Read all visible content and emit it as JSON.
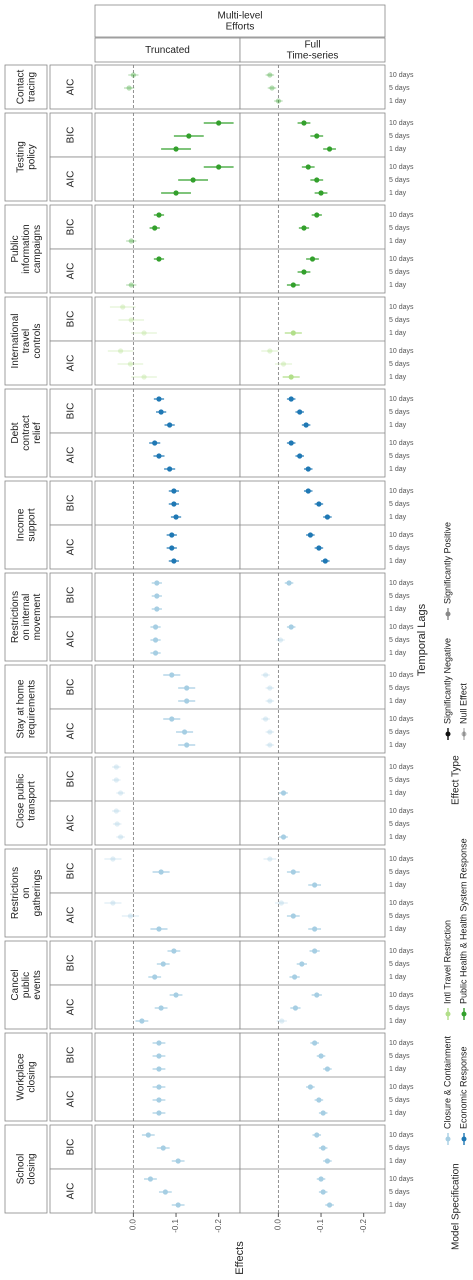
{
  "chart_data": {
    "type": "forest",
    "header": "Multi-level Efforts",
    "columns": [
      "Truncated",
      "Full Time-series"
    ],
    "xlabel": "Effects",
    "lag_label": "Temporal Lags",
    "lags": [
      "1 day",
      "5 days",
      "10 days"
    ],
    "xlim": [
      0.09,
      -0.25
    ],
    "xticks": [
      {
        "value": 0,
        "label": "0.0"
      },
      -0.1,
      -0.2
    ],
    "legend_title": "Model Specification",
    "effect_title": "Effect Type",
    "effect_types": [
      "Significantly Negative",
      "Null Effect",
      "Significantly Positive"
    ],
    "series": [
      {
        "name": "Closure & Containment",
        "color": "#a6cee3",
        "policies": [
          {
            "name": "Restrictions on internal movement",
            "models": [
              {
                "spec": "BIC",
                "values": [
                  [
                    -0.055,
                    -0.055,
                    -0.055
                  ],
                  [
                    null,
                    null,
                    -0.025
                  ]
                ],
                "errors": [
                  0.012,
                  0.01
                ]
              },
              {
                "spec": "AIC",
                "values": [
                  [
                    -0.052,
                    -0.052,
                    -0.052
                  ],
                  [
                    null,
                    -0.005,
                    -0.03
                  ]
                ],
                "errors": [
                  0.012,
                  0.01
                ]
              }
            ]
          },
          {
            "name": "Stay at home requirements",
            "models": [
              {
                "spec": "BIC",
                "values": [
                  [
                    -0.125,
                    -0.125,
                    -0.09
                  ],
                  [
                    0.02,
                    0.02,
                    0.03
                  ]
                ],
                "errors": [
                  0.02,
                  0.01
                ]
              },
              {
                "spec": "AIC",
                "values": [
                  [
                    -0.125,
                    -0.12,
                    -0.09
                  ],
                  [
                    0.02,
                    0.02,
                    0.03
                  ]
                ],
                "errors": [
                  0.02,
                  0.01
                ]
              }
            ]
          },
          {
            "name": "Close public transport",
            "models": [
              {
                "spec": "BIC",
                "values": [
                  [
                    0.03,
                    0.04,
                    0.04
                  ],
                  [
                    -0.012,
                    null,
                    null
                  ]
                ],
                "errors": [
                  0.01,
                  0.01
                ]
              },
              {
                "spec": "AIC",
                "values": [
                  [
                    0.03,
                    0.038,
                    0.04
                  ],
                  [
                    -0.012,
                    null,
                    null
                  ]
                ],
                "errors": [
                  0.01,
                  0.01
                ]
              }
            ]
          },
          {
            "name": "Restrictions on gatherings",
            "models": [
              {
                "spec": "BIC",
                "values": [
                  [
                    null,
                    -0.065,
                    0.048
                  ],
                  [
                    -0.085,
                    -0.035,
                    0.02
                  ]
                ],
                "errors": [
                  0.02,
                  0.015
                ]
              },
              {
                "spec": "AIC",
                "values": [
                  [
                    -0.06,
                    0.007,
                    0.048
                  ],
                  [
                    -0.085,
                    -0.035,
                    -0.007
                  ]
                ],
                "errors": [
                  0.02,
                  0.015
                ]
              }
            ]
          },
          {
            "name": "Cancel public events",
            "models": [
              {
                "spec": "BIC",
                "values": [
                  [
                    -0.05,
                    -0.07,
                    -0.095
                  ],
                  [
                    -0.038,
                    -0.055,
                    -0.085
                  ]
                ],
                "errors": [
                  0.015,
                  0.012
                ]
              },
              {
                "spec": "AIC",
                "values": [
                  [
                    -0.02,
                    -0.065,
                    -0.1
                  ],
                  [
                    -0.008,
                    -0.04,
                    -0.09
                  ]
                ],
                "errors": [
                  0.015,
                  0.012
                ]
              }
            ]
          },
          {
            "name": "Workplace closing",
            "models": [
              {
                "spec": "BIC",
                "values": [
                  [
                    -0.06,
                    -0.06,
                    -0.06
                  ],
                  [
                    -0.115,
                    -0.1,
                    -0.085
                  ]
                ],
                "errors": [
                  0.015,
                  0.01
                ]
              },
              {
                "spec": "AIC",
                "values": [
                  [
                    -0.06,
                    -0.06,
                    -0.06
                  ],
                  [
                    -0.105,
                    -0.095,
                    -0.075
                  ]
                ],
                "errors": [
                  0.015,
                  0.01
                ]
              }
            ]
          },
          {
            "name": "School closing",
            "models": [
              {
                "spec": "BIC",
                "values": [
                  [
                    -0.105,
                    -0.07,
                    -0.035
                  ],
                  [
                    -0.115,
                    -0.105,
                    -0.09
                  ]
                ],
                "errors": [
                  0.015,
                  0.01
                ]
              },
              {
                "spec": "AIC",
                "values": [
                  [
                    -0.105,
                    -0.075,
                    -0.04
                  ],
                  [
                    -0.12,
                    -0.105,
                    -0.1
                  ]
                ],
                "errors": [
                  0.015,
                  0.01
                ]
              }
            ]
          }
        ]
      },
      {
        "name": "Economic Response",
        "color": "#1f78b4",
        "policies": [
          {
            "name": "Debt contract relief",
            "models": [
              {
                "spec": "BIC",
                "values": [
                  [
                    -0.085,
                    -0.065,
                    -0.06
                  ],
                  [
                    -0.065,
                    -0.05,
                    -0.03
                  ]
                ],
                "errors": [
                  0.012,
                  0.01
                ]
              },
              {
                "spec": "AIC",
                "values": [
                  [
                    -0.085,
                    -0.06,
                    -0.05
                  ],
                  [
                    -0.07,
                    -0.05,
                    -0.03
                  ]
                ],
                "errors": [
                  0.013,
                  0.01
                ]
              }
            ]
          },
          {
            "name": "Income support",
            "models": [
              {
                "spec": "BIC",
                "values": [
                  [
                    -0.1,
                    -0.095,
                    -0.095
                  ],
                  [
                    -0.115,
                    -0.095,
                    -0.07
                  ]
                ],
                "errors": [
                  0.012,
                  0.01
                ]
              },
              {
                "spec": "AIC",
                "values": [
                  [
                    -0.095,
                    -0.09,
                    -0.09
                  ],
                  [
                    -0.11,
                    -0.095,
                    -0.075
                  ]
                ],
                "errors": [
                  0.012,
                  0.01
                ]
              }
            ]
          }
        ]
      },
      {
        "name": "Intl Travel Restriction",
        "color": "#b2df8a",
        "policies": [
          {
            "name": "International travel controls",
            "models": [
              {
                "spec": "BIC",
                "values": [
                  [
                    -0.025,
                    0.005,
                    0.025
                  ],
                  [
                    -0.035,
                    null,
                    null
                  ]
                ],
                "errors": [
                  0.03,
                  0.02
                ]
              },
              {
                "spec": "AIC",
                "values": [
                  [
                    -0.025,
                    0.007,
                    0.03
                  ],
                  [
                    -0.03,
                    -0.012,
                    0.02
                  ]
                ],
                "errors": [
                  0.03,
                  0.02
                ]
              }
            ]
          }
        ]
      },
      {
        "name": "Public Health & Health System Response",
        "color": "#33a02c",
        "policies": [
          {
            "name": "Contact tracing",
            "models": [
              {
                "spec": "AIC",
                "values": [
                  [
                    null,
                    0.01,
                    0.0
                  ],
                  [
                    0.0,
                    0.015,
                    0.02
                  ]
                ],
                "errors": [
                  0.012,
                  0.01
                ]
              }
            ]
          },
          {
            "name": "Testing policy",
            "models": [
              {
                "spec": "BIC",
                "values": [
                  [
                    -0.1,
                    -0.13,
                    -0.2
                  ],
                  [
                    -0.12,
                    -0.09,
                    -0.06
                  ]
                ],
                "errors": [
                  0.035,
                  0.015
                ]
              },
              {
                "spec": "AIC",
                "values": [
                  [
                    -0.1,
                    -0.14,
                    -0.2
                  ],
                  [
                    -0.1,
                    -0.09,
                    -0.07
                  ]
                ],
                "errors": [
                  0.035,
                  0.015
                ]
              }
            ]
          },
          {
            "name": "Public information campaigns",
            "models": [
              {
                "spec": "BIC",
                "values": [
                  [
                    0.005,
                    -0.05,
                    -0.06
                  ],
                  [
                    null,
                    -0.06,
                    -0.09
                  ]
                ],
                "errors": [
                  0.012,
                  0.012
                ]
              },
              {
                "spec": "AIC",
                "values": [
                  [
                    0.005,
                    null,
                    -0.06
                  ],
                  [
                    -0.035,
                    -0.06,
                    -0.08
                  ]
                ],
                "errors": [
                  0.012,
                  0.015
                ]
              }
            ]
          }
        ]
      }
    ]
  }
}
